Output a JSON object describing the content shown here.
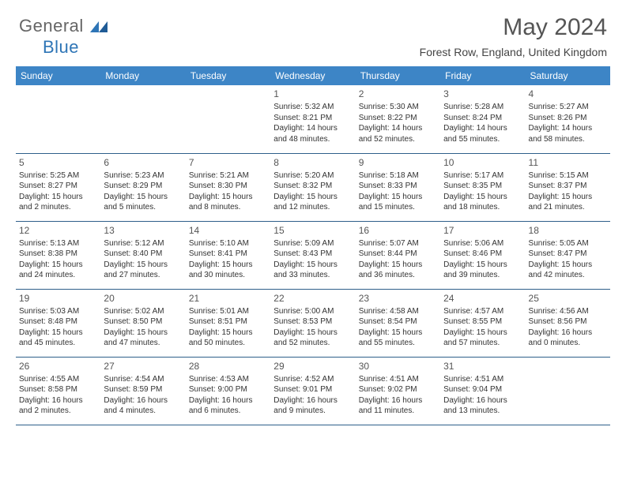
{
  "logo": {
    "text_general": "General",
    "text_blue": "Blue"
  },
  "title": "May 2024",
  "subtitle": "Forest Row, England, United Kingdom",
  "colors": {
    "header_bg": "#3d85c6",
    "header_fg": "#ffffff",
    "border": "#2e5f8a",
    "title_color": "#555555",
    "text_color": "#333333",
    "logo_gray": "#666666",
    "logo_blue": "#2e75b6"
  },
  "day_headers": [
    "Sunday",
    "Monday",
    "Tuesday",
    "Wednesday",
    "Thursday",
    "Friday",
    "Saturday"
  ],
  "weeks": [
    [
      null,
      null,
      null,
      {
        "n": "1",
        "sunrise": "5:32 AM",
        "sunset": "8:21 PM",
        "day_h": 14,
        "day_m": 48
      },
      {
        "n": "2",
        "sunrise": "5:30 AM",
        "sunset": "8:22 PM",
        "day_h": 14,
        "day_m": 52
      },
      {
        "n": "3",
        "sunrise": "5:28 AM",
        "sunset": "8:24 PM",
        "day_h": 14,
        "day_m": 55
      },
      {
        "n": "4",
        "sunrise": "5:27 AM",
        "sunset": "8:26 PM",
        "day_h": 14,
        "day_m": 58
      }
    ],
    [
      {
        "n": "5",
        "sunrise": "5:25 AM",
        "sunset": "8:27 PM",
        "day_h": 15,
        "day_m": 2
      },
      {
        "n": "6",
        "sunrise": "5:23 AM",
        "sunset": "8:29 PM",
        "day_h": 15,
        "day_m": 5
      },
      {
        "n": "7",
        "sunrise": "5:21 AM",
        "sunset": "8:30 PM",
        "day_h": 15,
        "day_m": 8
      },
      {
        "n": "8",
        "sunrise": "5:20 AM",
        "sunset": "8:32 PM",
        "day_h": 15,
        "day_m": 12
      },
      {
        "n": "9",
        "sunrise": "5:18 AM",
        "sunset": "8:33 PM",
        "day_h": 15,
        "day_m": 15
      },
      {
        "n": "10",
        "sunrise": "5:17 AM",
        "sunset": "8:35 PM",
        "day_h": 15,
        "day_m": 18
      },
      {
        "n": "11",
        "sunrise": "5:15 AM",
        "sunset": "8:37 PM",
        "day_h": 15,
        "day_m": 21
      }
    ],
    [
      {
        "n": "12",
        "sunrise": "5:13 AM",
        "sunset": "8:38 PM",
        "day_h": 15,
        "day_m": 24
      },
      {
        "n": "13",
        "sunrise": "5:12 AM",
        "sunset": "8:40 PM",
        "day_h": 15,
        "day_m": 27
      },
      {
        "n": "14",
        "sunrise": "5:10 AM",
        "sunset": "8:41 PM",
        "day_h": 15,
        "day_m": 30
      },
      {
        "n": "15",
        "sunrise": "5:09 AM",
        "sunset": "8:43 PM",
        "day_h": 15,
        "day_m": 33
      },
      {
        "n": "16",
        "sunrise": "5:07 AM",
        "sunset": "8:44 PM",
        "day_h": 15,
        "day_m": 36
      },
      {
        "n": "17",
        "sunrise": "5:06 AM",
        "sunset": "8:46 PM",
        "day_h": 15,
        "day_m": 39
      },
      {
        "n": "18",
        "sunrise": "5:05 AM",
        "sunset": "8:47 PM",
        "day_h": 15,
        "day_m": 42
      }
    ],
    [
      {
        "n": "19",
        "sunrise": "5:03 AM",
        "sunset": "8:48 PM",
        "day_h": 15,
        "day_m": 45
      },
      {
        "n": "20",
        "sunrise": "5:02 AM",
        "sunset": "8:50 PM",
        "day_h": 15,
        "day_m": 47
      },
      {
        "n": "21",
        "sunrise": "5:01 AM",
        "sunset": "8:51 PM",
        "day_h": 15,
        "day_m": 50
      },
      {
        "n": "22",
        "sunrise": "5:00 AM",
        "sunset": "8:53 PM",
        "day_h": 15,
        "day_m": 52
      },
      {
        "n": "23",
        "sunrise": "4:58 AM",
        "sunset": "8:54 PM",
        "day_h": 15,
        "day_m": 55
      },
      {
        "n": "24",
        "sunrise": "4:57 AM",
        "sunset": "8:55 PM",
        "day_h": 15,
        "day_m": 57
      },
      {
        "n": "25",
        "sunrise": "4:56 AM",
        "sunset": "8:56 PM",
        "day_h": 16,
        "day_m": 0
      }
    ],
    [
      {
        "n": "26",
        "sunrise": "4:55 AM",
        "sunset": "8:58 PM",
        "day_h": 16,
        "day_m": 2
      },
      {
        "n": "27",
        "sunrise": "4:54 AM",
        "sunset": "8:59 PM",
        "day_h": 16,
        "day_m": 4
      },
      {
        "n": "28",
        "sunrise": "4:53 AM",
        "sunset": "9:00 PM",
        "day_h": 16,
        "day_m": 6
      },
      {
        "n": "29",
        "sunrise": "4:52 AM",
        "sunset": "9:01 PM",
        "day_h": 16,
        "day_m": 9
      },
      {
        "n": "30",
        "sunrise": "4:51 AM",
        "sunset": "9:02 PM",
        "day_h": 16,
        "day_m": 11
      },
      {
        "n": "31",
        "sunrise": "4:51 AM",
        "sunset": "9:04 PM",
        "day_h": 16,
        "day_m": 13
      },
      null
    ]
  ],
  "labels": {
    "sunrise_prefix": "Sunrise: ",
    "sunset_prefix": "Sunset: ",
    "daylight_prefix": "Daylight: ",
    "hours_word": " hours",
    "and_word": "and ",
    "minutes_word": " minutes."
  }
}
